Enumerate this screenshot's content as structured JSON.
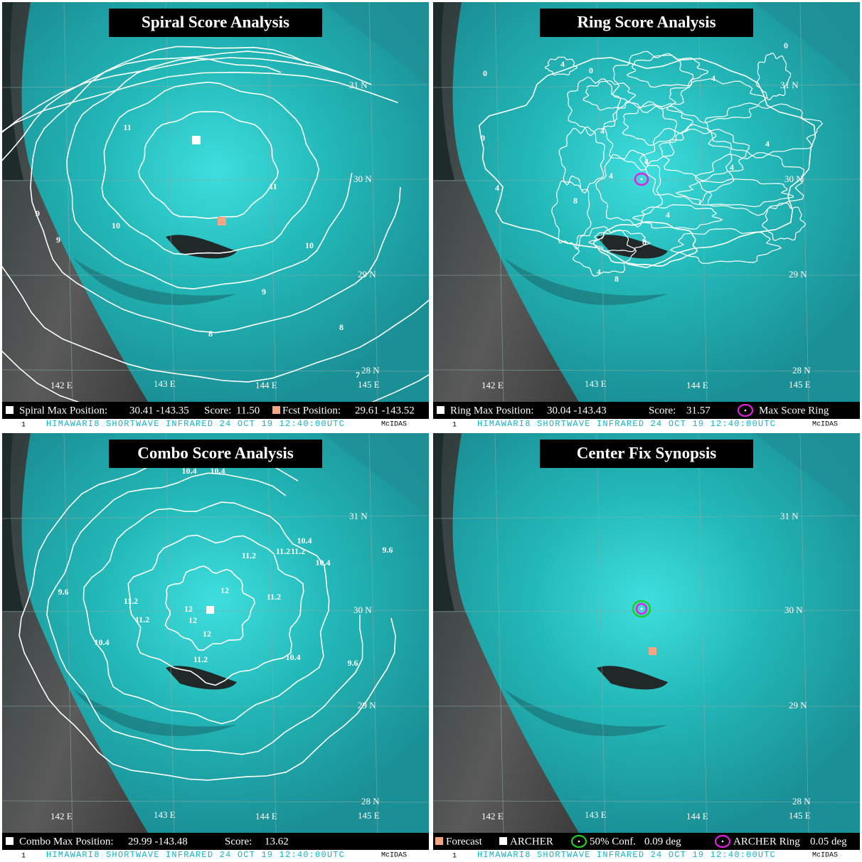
{
  "panels": [
    {
      "title": "Spiral Score Analysis",
      "grid_labels": [
        "31 N",
        "30 N",
        "29 N",
        "28 N",
        "142 E",
        "143 E",
        "144 E",
        "145 E"
      ],
      "contour_labels": [
        "11",
        "11",
        "10",
        "10",
        "9",
        "9",
        "9",
        "8",
        "8",
        "7"
      ],
      "legend": [
        "Spiral Max Position:",
        "30.41 -143.35",
        "Score:",
        "11.50",
        "Fcst Position:",
        "29.61 -143.52"
      ],
      "footer": [
        "1",
        "HIMAWARI8 SHORTWAVE INFRARED 24 OCT 19 12:40:00UTC",
        "McIDAS"
      ]
    },
    {
      "title": "Ring Score Analysis",
      "grid_labels": [
        "31 N",
        "30 N",
        "29 N",
        "28 N",
        "142 E",
        "143 E",
        "144 E",
        "145 E"
      ],
      "contour_labels": [
        "0",
        "0",
        "0",
        "0",
        "4",
        "4",
        "4",
        "4",
        "4",
        "4",
        "8",
        "8",
        "4",
        "4",
        "8",
        "4",
        "4"
      ],
      "legend": [
        "Ring Max Position:",
        "30.04 -143.43",
        "Score:",
        "31.57",
        "Max Score Ring"
      ],
      "footer": [
        "1",
        "HIMAWARI8 SHORTWAVE INFRARED 24 OCT 19 12:40:00UTC",
        "McIDAS"
      ]
    },
    {
      "title": "Combo Score Analysis",
      "grid_labels": [
        "31 N",
        "30 N",
        "29 N",
        "28 N",
        "142 E",
        "143 E",
        "144 E",
        "145 E"
      ],
      "contour_labels": [
        "10.4",
        "10.4",
        "10.4",
        "10.4",
        "11.2",
        "11.2",
        "11.2",
        "11.2",
        "11.2",
        "11.2",
        "12",
        "12",
        "12",
        "12",
        "9.6",
        "9.6",
        "9.6",
        "10.4",
        "10.4",
        "11.2"
      ],
      "legend": [
        "Combo Max Position:",
        "29.99 -143.48",
        "Score:",
        "13.62"
      ],
      "footer": [
        "1",
        "HIMAWARI8 SHORTWAVE INFRARED 24 OCT 19 12:40:00UTC",
        "McIDAS"
      ]
    },
    {
      "title": "Center Fix Synopsis",
      "grid_labels": [
        "31 N",
        "30 N",
        "29 N",
        "28 N",
        "142 E",
        "143 E",
        "144 E",
        "145 E"
      ],
      "contour_labels": [],
      "legend": [
        "Forecast",
        "ARCHER",
        "50% Conf.",
        "0.09 deg",
        "ARCHER Ring",
        "0.05 deg"
      ],
      "footer": [
        "1",
        "HIMAWARI8 SHORTWAVE INFRARED 24 OCT 19 12:40:00UTC",
        "McIDAS"
      ]
    }
  ]
}
